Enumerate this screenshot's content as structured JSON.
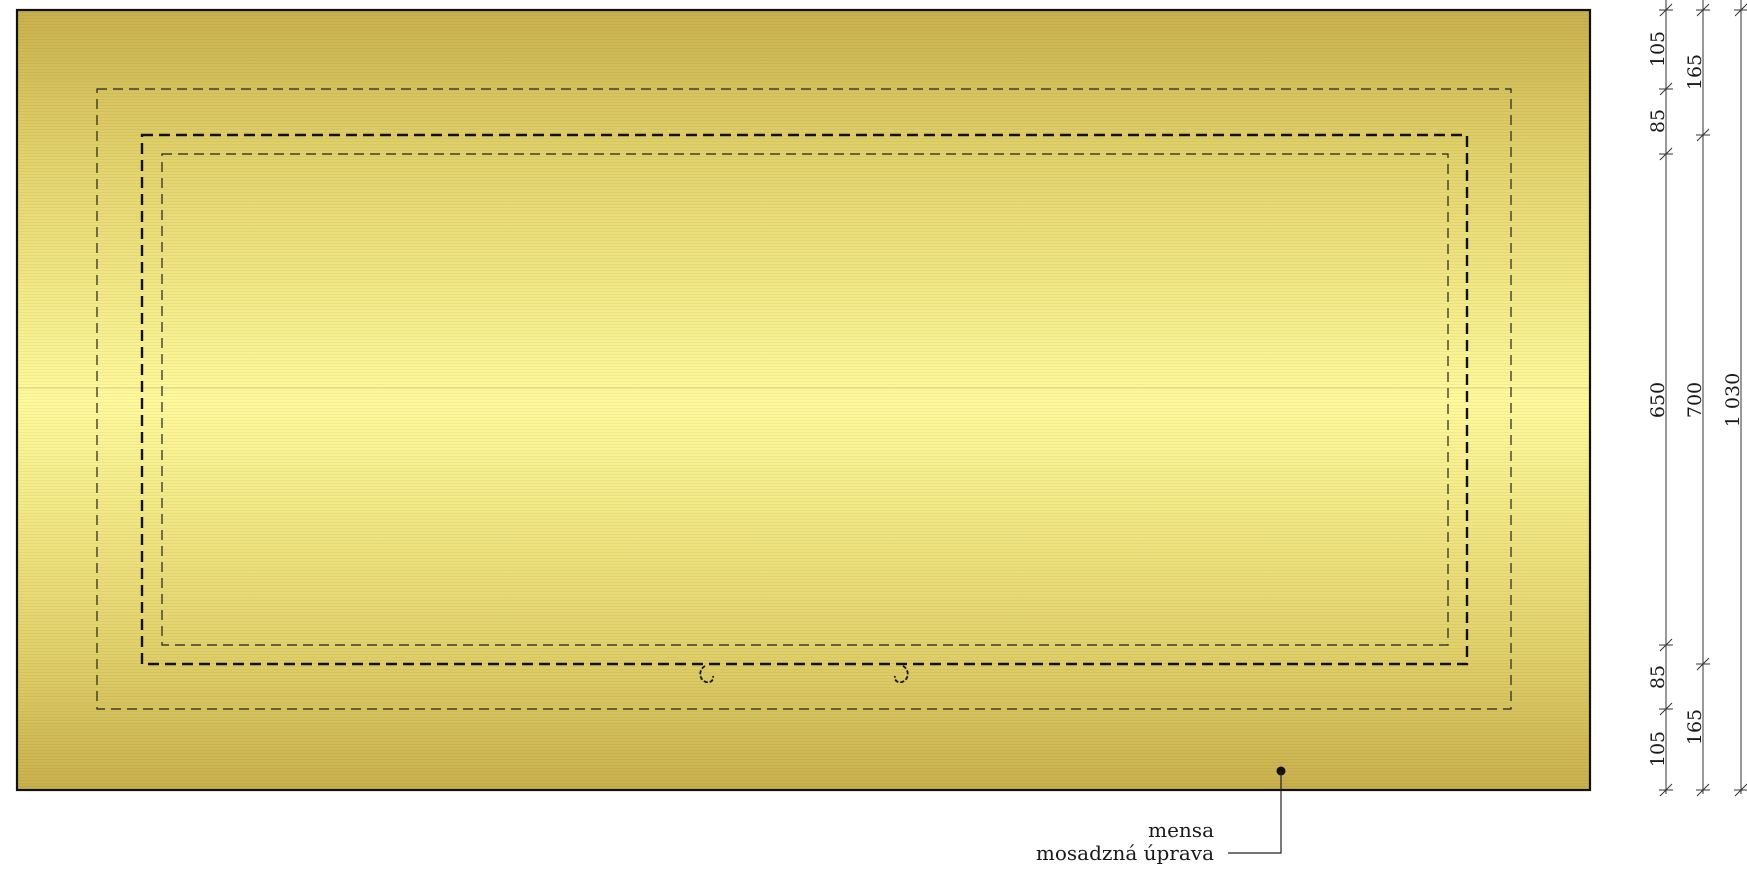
{
  "colors": {
    "brass_edge": "#c9b04c",
    "brass_mid": "#fffa9c",
    "outline": "#111111",
    "dim_line": "#333333"
  },
  "icons": {
    "hook": "hook-icon",
    "leader_dot": "leader-dot-icon"
  },
  "dimensions": {
    "chain_1": [
      "105",
      "85",
      "650",
      "85",
      "105"
    ],
    "chain_2": [
      "165",
      "700",
      "165"
    ],
    "overall": "1 030"
  },
  "callout": {
    "line1": "mensa",
    "line2": "mosadzná úprava"
  }
}
